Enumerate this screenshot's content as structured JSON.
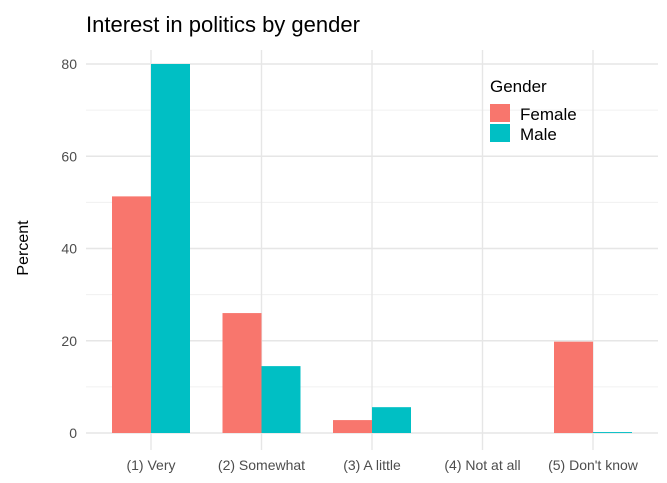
{
  "chart_data": {
    "type": "bar",
    "title": "Interest in politics by gender",
    "xlabel": "",
    "ylabel": "Percent",
    "categories": [
      "(1) Very",
      "(2) Somewhat",
      "(3) A little",
      "(4) Not at all",
      "(5) Don't know"
    ],
    "series": [
      {
        "name": "Female",
        "values": [
          51.3,
          26.0,
          2.8,
          0.0,
          19.8
        ],
        "color": "#F8766D"
      },
      {
        "name": "Male",
        "values": [
          80.0,
          14.5,
          5.6,
          0.0,
          0.2
        ],
        "color": "#00BFC4"
      }
    ],
    "ylim": [
      0,
      80
    ],
    "y_ticks": [
      0,
      20,
      40,
      60,
      80
    ],
    "grid": true,
    "legend": {
      "title": "Gender",
      "position": "top-right"
    }
  }
}
